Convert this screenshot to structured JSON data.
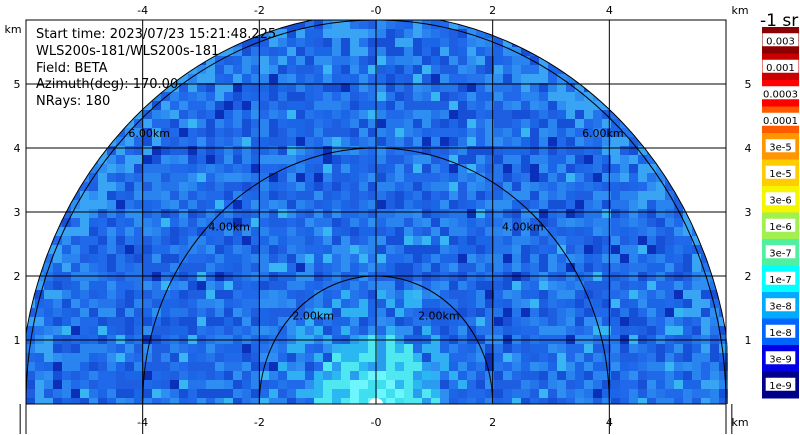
{
  "chart_data": {
    "type": "heatmap",
    "subtype": "radar-ppi-half-circle",
    "info": {
      "start_time": "Start time: 2023/07/23 15:21:48.225",
      "instrument": "WLS200s-181/WLS200s-181",
      "field": "Field: BETA",
      "azimuth": "Azimuth(deg): 170.00",
      "nrays": "NRays: 180"
    },
    "x_unit": "km",
    "y_unit": "km",
    "xlim": [
      -6,
      6
    ],
    "ylim": [
      0,
      6
    ],
    "x_ticks": [
      -4,
      -2,
      0,
      2,
      4
    ],
    "x_tick_labels": [
      "-4",
      "-2",
      "-0",
      "2",
      "4"
    ],
    "y_ticks": [
      1,
      2,
      3,
      4,
      5
    ],
    "y_tick_labels": [
      "1",
      "2",
      "3",
      "4",
      "5"
    ],
    "grid": true,
    "range_rings_km": [
      2,
      4,
      6,
      6.1
    ],
    "range_ring_labels": [
      "2.00km",
      "4.00km",
      "6.00km"
    ],
    "colorbar": {
      "title": "-1 sr",
      "labels": [
        "0.003",
        "0.001",
        "0.0003",
        "0.0001",
        "3e-5",
        "1e-5",
        "3e-6",
        "1e-6",
        "3e-7",
        "1e-7",
        "3e-8",
        "1e-8",
        "3e-9",
        "1e-9"
      ],
      "colors": [
        "#8b0000",
        "#c80000",
        "#ff0000",
        "#ff5a00",
        "#ff9600",
        "#ffcc00",
        "#f5f500",
        "#a0f050",
        "#50f0a0",
        "#00ffff",
        "#00aaff",
        "#0064ff",
        "#0000e6",
        "#00008b"
      ]
    }
  }
}
